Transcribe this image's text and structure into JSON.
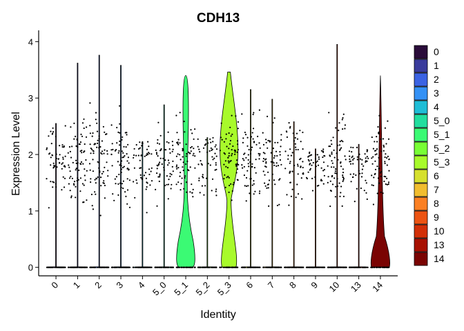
{
  "chart_data": {
    "type": "violin",
    "title": "CDH13",
    "xlabel": "Identity",
    "ylabel": "Expression Level",
    "ylim": [
      -0.15,
      4.2
    ],
    "yticks": [
      0,
      1,
      2,
      3,
      4
    ],
    "grid": false,
    "legend_position": "right",
    "categories": [
      "0",
      "1",
      "2",
      "3",
      "4",
      "5_0",
      "5_1",
      "5_2",
      "5_3",
      "6",
      "7",
      "8",
      "9",
      "10",
      "13",
      "14"
    ],
    "colors": [
      "#2A0C3A",
      "#3A3C9C",
      "#3B63E3",
      "#3491F5",
      "#1FBDD6",
      "#21DE9E",
      "#3BFA74",
      "#78FE35",
      "#A8FA2B",
      "#D6E02E",
      "#F1BD2F",
      "#FB8023",
      "#EC5413",
      "#D22F07",
      "#A81102",
      "#7A0403"
    ],
    "violin_max": [
      2.55,
      3.62,
      3.76,
      3.58,
      2.23,
      2.88,
      3.4,
      2.3,
      3.46,
      3.15,
      2.98,
      2.58,
      2.1,
      3.95,
      2.18,
      3.4
    ]
  }
}
